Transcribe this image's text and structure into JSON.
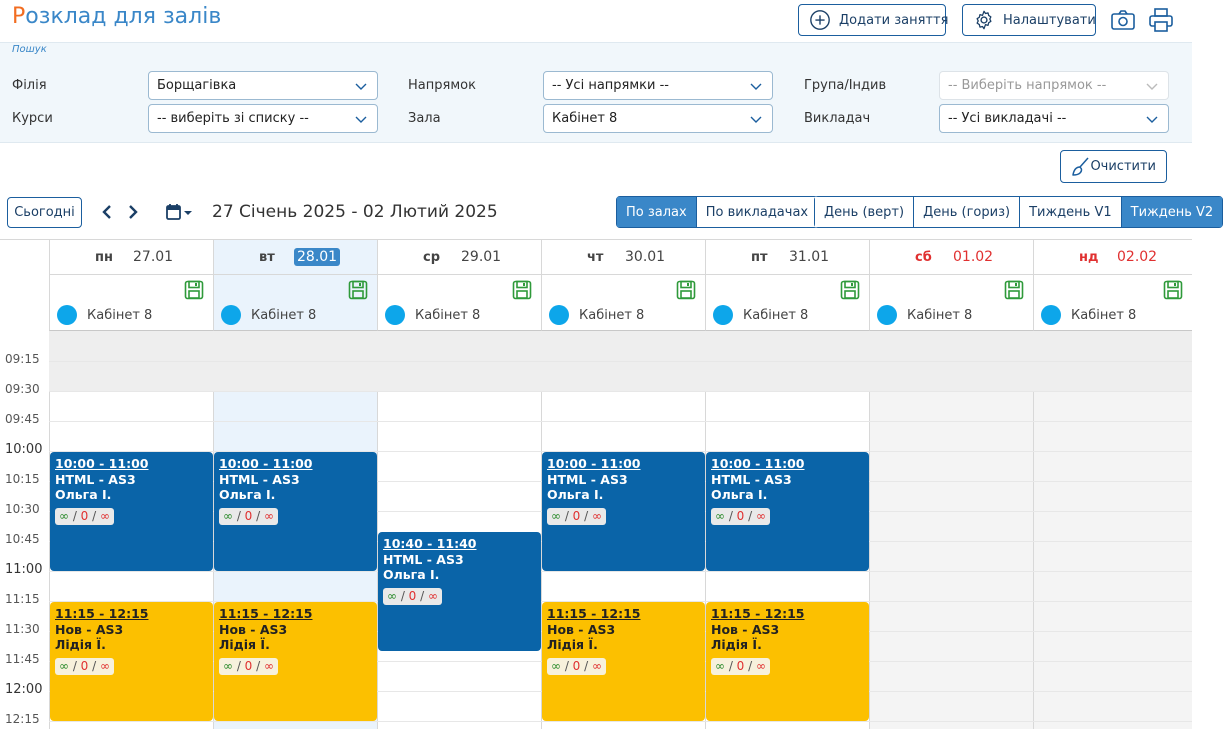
{
  "header": {
    "title_first": "Р",
    "title_rest": "озклад для залів",
    "add_button": "Додати заняття",
    "settings_button": "Налаштувати"
  },
  "filters": {
    "search_label": "Пошук",
    "branch_label": "Філія",
    "branch_value": "Борщагівка",
    "direction_label": "Напрямок",
    "direction_value": "-- Усі напрямки --",
    "group_label": "Група/Індив",
    "group_value": "-- Виберіть напрямок --",
    "courses_label": "Курси",
    "courses_value": "-- виберіть зі списку --",
    "hall_label": "Зала",
    "hall_value": "Кабінет 8",
    "teacher_label": "Викладач",
    "teacher_value": "-- Усі викладачі --",
    "clear_button": "Очистити"
  },
  "toolbar": {
    "today": "Сьогодні",
    "range": "27 Січень 2025 - 02 Лютий 2025",
    "group_by": [
      "По залах",
      "По викладачах"
    ],
    "views": [
      "День (верт)",
      "День (гориз)",
      "Тиждень V1",
      "Тиждень V2"
    ]
  },
  "days": [
    {
      "name": "пн",
      "date": "27.01",
      "room": "Кабінет 8"
    },
    {
      "name": "вт",
      "date": "28.01",
      "room": "Кабінет 8"
    },
    {
      "name": "ср",
      "date": "29.01",
      "room": "Кабінет 8"
    },
    {
      "name": "чт",
      "date": "30.01",
      "room": "Кабінет 8"
    },
    {
      "name": "пт",
      "date": "31.01",
      "room": "Кабінет 8"
    },
    {
      "name": "сб",
      "date": "01.02",
      "room": "Кабінет 8"
    },
    {
      "name": "нд",
      "date": "02.02",
      "room": "Кабінет 8"
    }
  ],
  "times": [
    "09:15",
    "09:30",
    "09:45",
    "10:00",
    "10:15",
    "10:30",
    "10:45",
    "11:00",
    "11:15",
    "11:30",
    "11:45",
    "12:00",
    "12:15"
  ],
  "events": [
    {
      "day": 0,
      "time": "10:00 - 11:00",
      "group": "HTML - AS3",
      "teacher": "Ольга І.",
      "a": "∞",
      "b": "0",
      "c": "∞",
      "color": "blue"
    },
    {
      "day": 1,
      "time": "10:00 - 11:00",
      "group": "HTML - AS3",
      "teacher": "Ольга І.",
      "a": "∞",
      "b": "0",
      "c": "∞",
      "color": "blue"
    },
    {
      "day": 3,
      "time": "10:00 - 11:00",
      "group": "HTML - AS3",
      "teacher": "Ольга І.",
      "a": "∞",
      "b": "0",
      "c": "∞",
      "color": "blue"
    },
    {
      "day": 4,
      "time": "10:00 - 11:00",
      "group": "HTML - AS3",
      "teacher": "Ольга І.",
      "a": "∞",
      "b": "0",
      "c": "∞",
      "color": "blue"
    },
    {
      "day": 2,
      "time": "10:40 - 11:40",
      "group": "HTML - AS3",
      "teacher": "Ольга І.",
      "a": "∞",
      "b": "0",
      "c": "∞",
      "color": "blue"
    },
    {
      "day": 0,
      "time": "11:15 - 12:15",
      "group": "Нов - AS3",
      "teacher": "Лідія Ї.",
      "a": "∞",
      "b": "0",
      "c": "∞",
      "color": "yellow"
    },
    {
      "day": 1,
      "time": "11:15 - 12:15",
      "group": "Нов - AS3",
      "teacher": "Лідія Ї.",
      "a": "∞",
      "b": "0",
      "c": "∞",
      "color": "yellow"
    },
    {
      "day": 3,
      "time": "11:15 - 12:15",
      "group": "Нов - AS3",
      "teacher": "Лідія Ї.",
      "a": "∞",
      "b": "0",
      "c": "∞",
      "color": "yellow"
    },
    {
      "day": 4,
      "time": "11:15 - 12:15",
      "group": "Нов - AS3",
      "teacher": "Лідія Ї.",
      "a": "∞",
      "b": "0",
      "c": "∞",
      "color": "yellow"
    }
  ],
  "colors": {
    "accent": "#3a87c8",
    "brand": "#f26d21",
    "event_blue": "#0a64a8",
    "event_yellow": "#fcc000",
    "weekend": "#e03030"
  }
}
